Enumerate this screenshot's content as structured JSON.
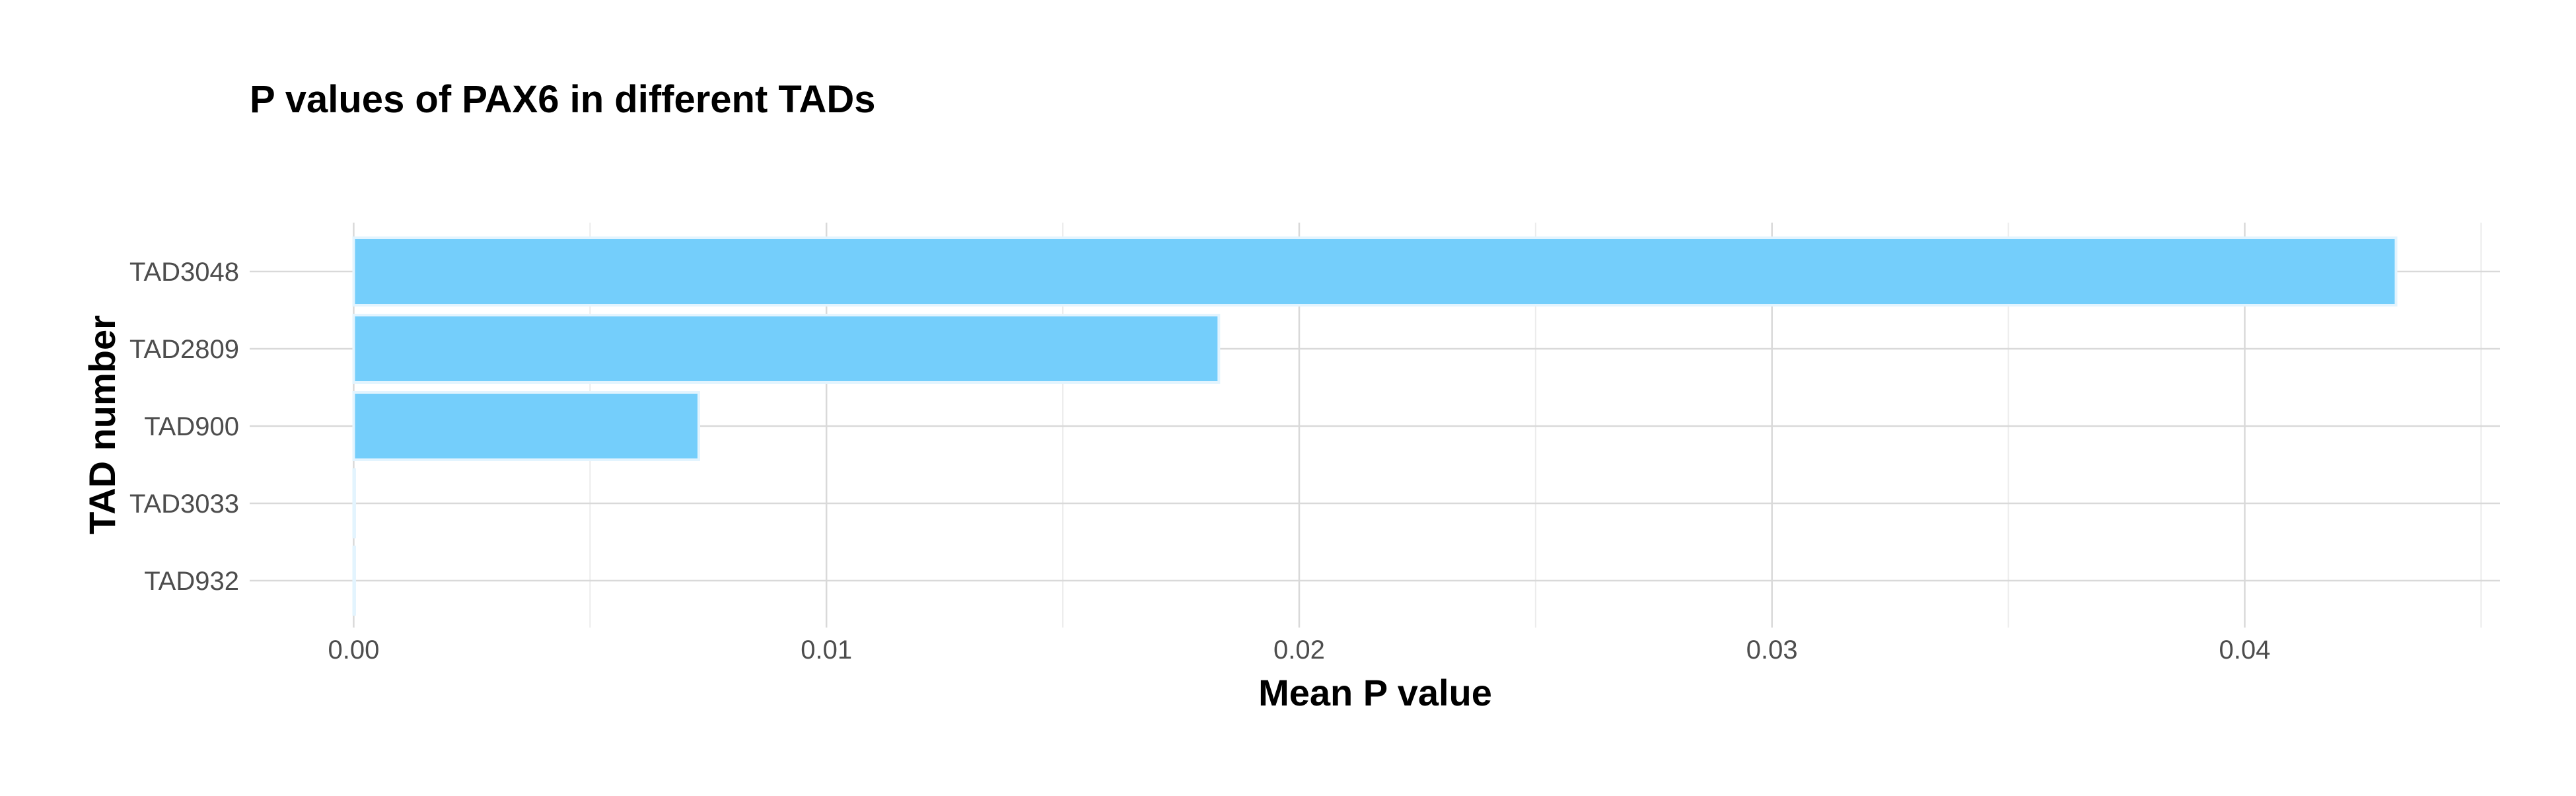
{
  "chart_data": {
    "type": "bar",
    "orientation": "horizontal",
    "title": "P values of PAX6 in different TADs",
    "xlabel": "Mean P value",
    "ylabel": "TAD number",
    "categories": [
      "TAD3048",
      "TAD2809",
      "TAD900",
      "TAD3033",
      "TAD932"
    ],
    "values": [
      0.0432,
      0.0183,
      0.0073,
      0.0,
      0.0
    ],
    "xlim": [
      -0.0022,
      0.0454
    ],
    "x_ticks": [
      0.0,
      0.01,
      0.02,
      0.03,
      0.04
    ],
    "x_tick_labels": [
      "0.00",
      "0.01",
      "0.02",
      "0.03",
      "0.04"
    ],
    "grid": true,
    "bar_color": "#74CEFB",
    "bar_outline_color": "#E3F4FE"
  }
}
